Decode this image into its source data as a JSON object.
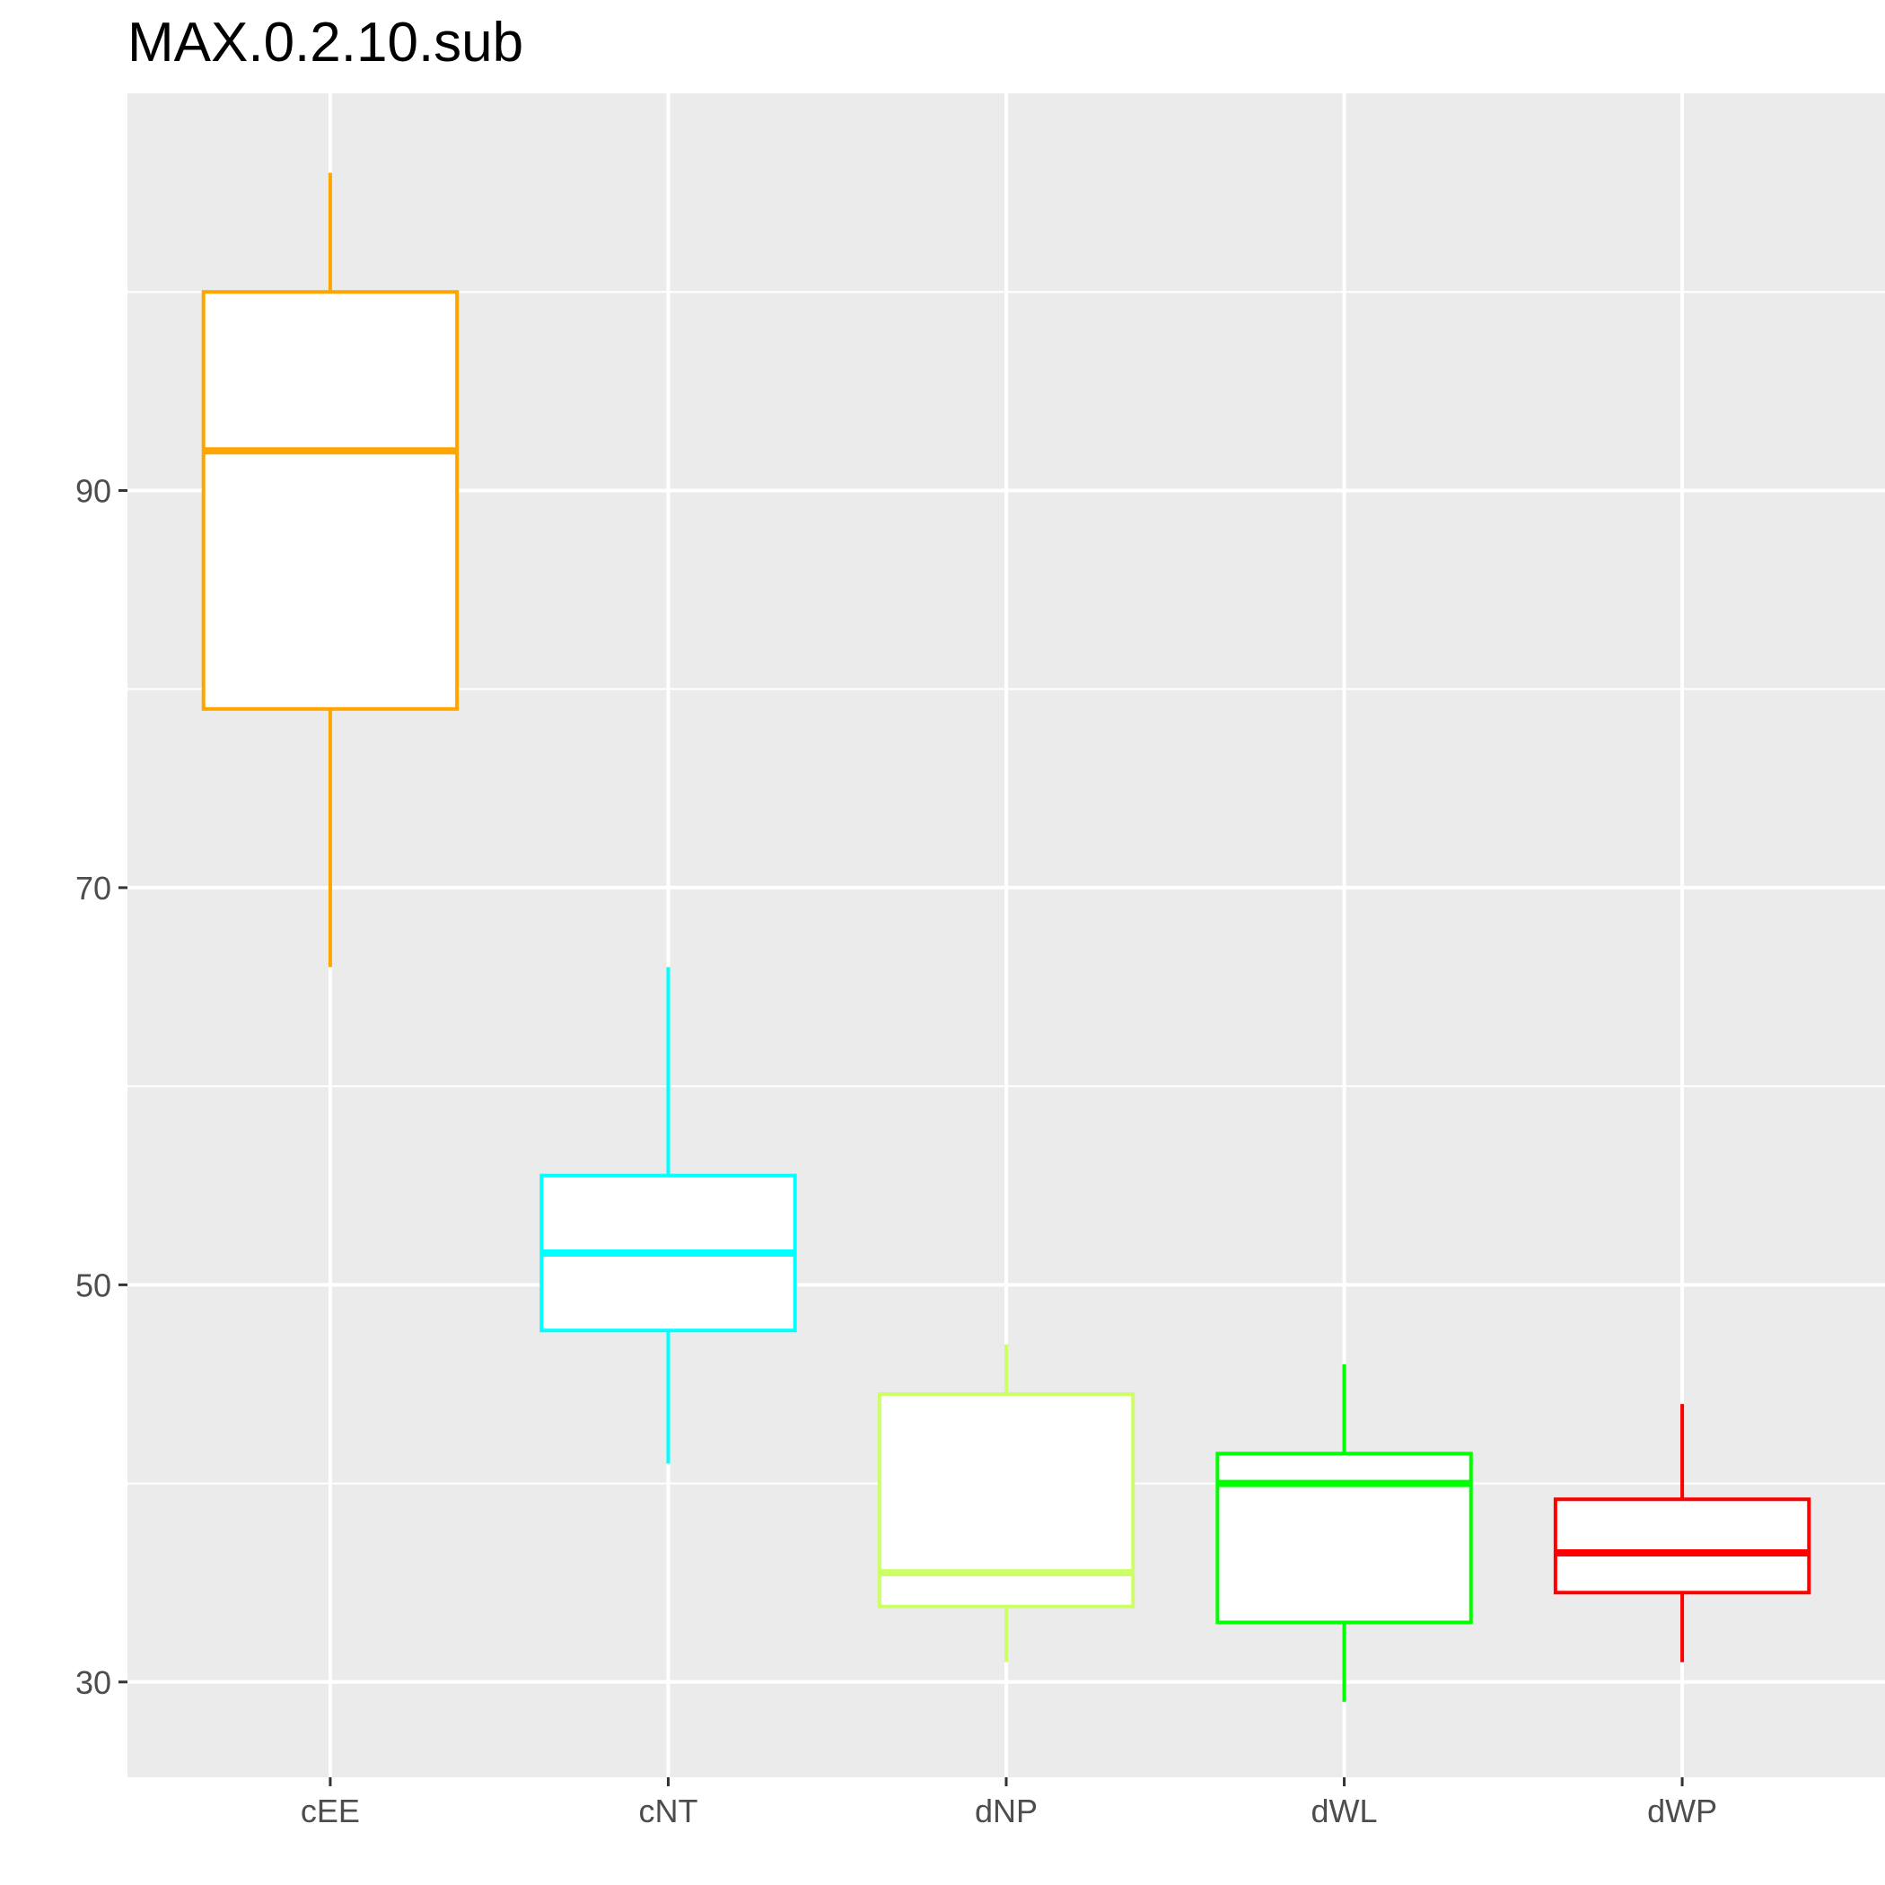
{
  "chart_data": {
    "type": "boxplot",
    "title": "MAX.0.2.10.sub",
    "xlabel": "",
    "ylabel": "",
    "ylim": [
      25.2,
      110
    ],
    "yticks": [
      30,
      50,
      70,
      90
    ],
    "grid": true,
    "legend": "none",
    "categories": [
      "cEE",
      "cNT",
      "dNP",
      "dWL",
      "dWP"
    ],
    "boxes": [
      {
        "category": "cEE",
        "whisker_low": 66,
        "q1": 79,
        "median": 92,
        "q3": 100,
        "whisker_high": 106,
        "color": "#FFA500"
      },
      {
        "category": "cNT",
        "whisker_low": 41,
        "q1": 47.7,
        "median": 51.6,
        "q3": 55.5,
        "whisker_high": 66,
        "color": "#00FFFF"
      },
      {
        "category": "dNP",
        "whisker_low": 31,
        "q1": 33.8,
        "median": 35.5,
        "q3": 44.5,
        "whisker_high": 47,
        "color": "#CCFF66"
      },
      {
        "category": "dWL",
        "whisker_low": 29,
        "q1": 33,
        "median": 40,
        "q3": 41.5,
        "whisker_high": 46,
        "color": "#00FF00"
      },
      {
        "category": "dWP",
        "whisker_low": 31,
        "q1": 34.5,
        "median": 36.5,
        "q3": 39.2,
        "whisker_high": 44,
        "color": "#FF0000"
      }
    ]
  }
}
